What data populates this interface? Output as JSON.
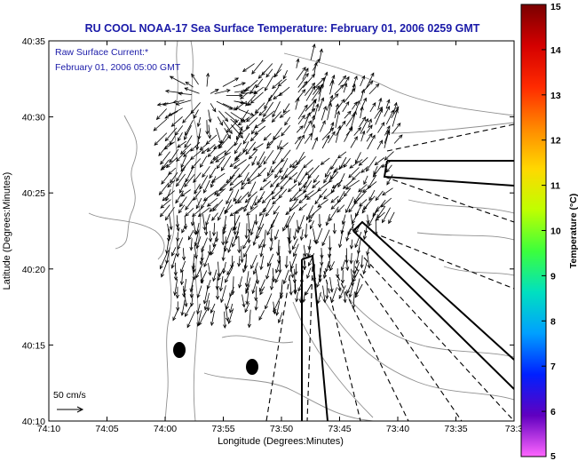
{
  "title": "RU COOL  NOAA-17  Sea Surface Temperature:  February 01, 2006 0259 GMT",
  "annotations": {
    "current_label": "Raw Surface Current:*",
    "current_time": "February 01, 2006 05:00 GMT",
    "scale_label": "50 cm/s"
  },
  "axes": {
    "xlabel": "Longitude (Degrees:Minutes)",
    "ylabel": "Latitude (Degrees:Minutes)",
    "xticks": [
      "74:10",
      "74:05",
      "74:00",
      "73:55",
      "73:50",
      "73:45",
      "73:40",
      "73:35",
      "73:3"
    ],
    "yticks": [
      "40:35",
      "40:30",
      "40:25",
      "40:20",
      "40:15",
      "40:10"
    ]
  },
  "colorbar": {
    "label": "Temperature (°C)",
    "ticks": [
      "15",
      "14",
      "13",
      "12",
      "11",
      "10",
      "9",
      "8",
      "7",
      "6",
      "5"
    ],
    "stops": [
      "#7a0000",
      "#d40000",
      "#ff2a00",
      "#ff8800",
      "#ffd800",
      "#bfff00",
      "#3cff3c",
      "#00e0c0",
      "#00a0ff",
      "#0020ff",
      "#6000c0",
      "#ff66ff"
    ]
  },
  "colors": {
    "title": "#1a1aa8",
    "contour": "#909090",
    "vector": "#000000"
  }
}
